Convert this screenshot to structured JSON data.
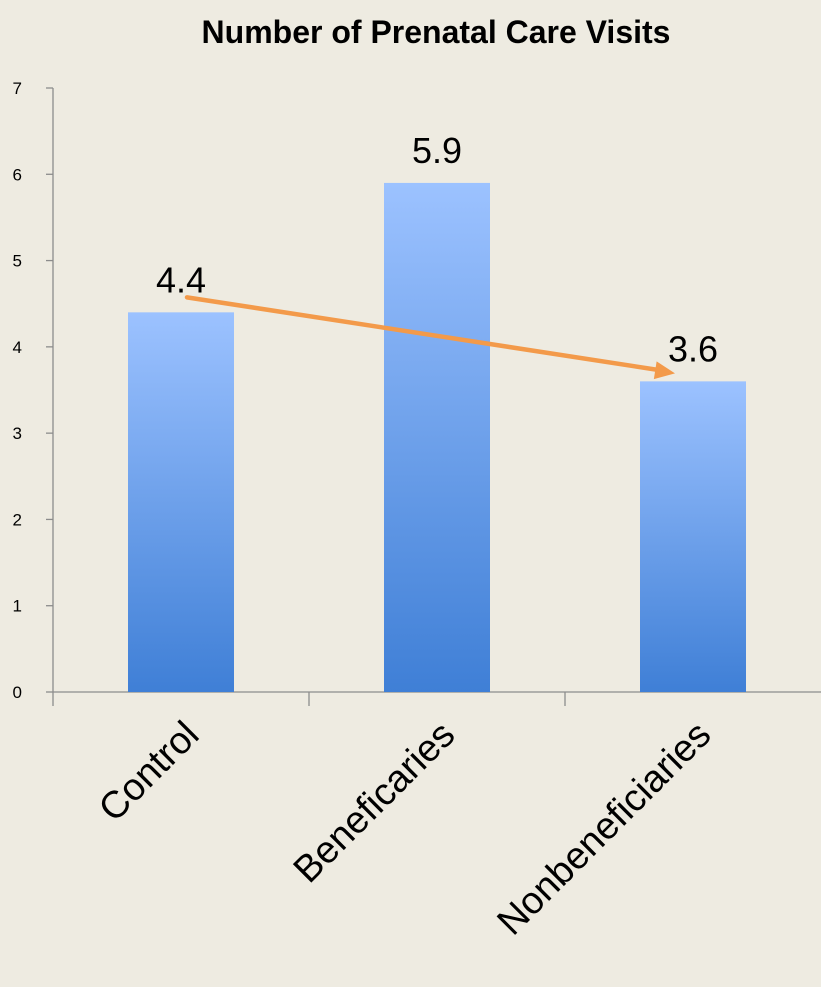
{
  "chart_data": {
    "type": "bar",
    "title": "Number of Prenatal Care Visits",
    "categories": [
      "Control",
      "Beneficaries",
      "Nonbeneficiaries"
    ],
    "values": [
      4.4,
      5.9,
      3.6
    ],
    "data_labels": [
      "4.4",
      "5.9",
      "3.6"
    ],
    "y_ticks": [
      "0",
      "1",
      "2",
      "3",
      "4",
      "5",
      "6",
      "7"
    ],
    "ylim": [
      0,
      7
    ],
    "xlabel": "",
    "ylabel": "",
    "grid": false,
    "legend": "none",
    "annotations": [
      {
        "type": "arrow",
        "from_category": "Control",
        "to_category": "Nonbeneficiaries",
        "color": "#f39a4a"
      }
    ]
  },
  "colors": {
    "background": "#eeebe1",
    "bar_top": "#9cc2ff",
    "bar_bottom": "#3f7fd6",
    "axis": "#8c8c8c",
    "arrow": "#f39a4a"
  }
}
